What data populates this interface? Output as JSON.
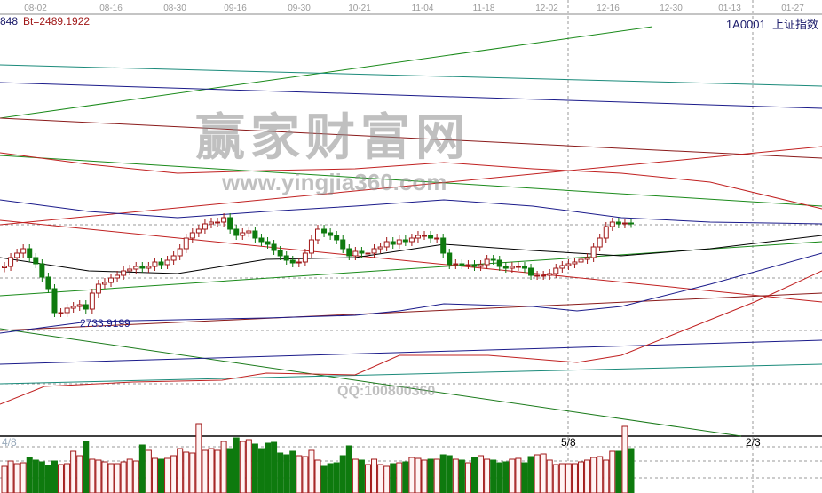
{
  "header": {
    "left_value": "848",
    "bt_value": "Bt=2489.1922",
    "symbol": "1A0001",
    "name": "上证指数"
  },
  "chart_data": {
    "type": "candlestick",
    "x_tick_labels": [
      "08-02",
      "08-16",
      "08-30",
      "09-16",
      "09-30",
      "10-21",
      "11-04",
      "11-18",
      "12-02",
      "12-16",
      "12-30",
      "01-13",
      "01-27"
    ],
    "low_marker": "2733.9199",
    "period_markers": [
      "4/8",
      "5/8",
      "2/3"
    ],
    "ylim": [
      2230,
      4074
    ],
    "close": [
      2994,
      3034,
      3054,
      3074,
      3034,
      3006,
      2946,
      2894,
      2786,
      2786,
      2806,
      2814,
      2822,
      2802,
      2874,
      2914,
      2922,
      2942,
      2954,
      2974,
      2982,
      2994,
      2986,
      2994,
      3014,
      3002,
      3022,
      3042,
      3074,
      3122,
      3146,
      3162,
      3186,
      3194,
      3194,
      3214,
      3162,
      3134,
      3146,
      3154,
      3122,
      3106,
      3094,
      3066,
      3042,
      3022,
      3010,
      3014,
      3054,
      3114,
      3162,
      3146,
      3134,
      3114,
      3074,
      3042,
      3062,
      3054,
      3054,
      3074,
      3082,
      3106,
      3094,
      3114,
      3106,
      3122,
      3134,
      3134,
      3122,
      3122,
      3054,
      3002,
      3006,
      3002,
      3002,
      2994,
      3002,
      3026,
      3022,
      2994,
      2986,
      2994,
      2994,
      2986,
      2954,
      2954,
      2954,
      2962,
      2986,
      2998,
      3006,
      3014,
      3026,
      3034,
      3082,
      3122,
      3174,
      3194,
      3186,
      3190,
      3188
    ],
    "volume": [
      30,
      36,
      33,
      34,
      40,
      37,
      35,
      31,
      36,
      32,
      33,
      47,
      42,
      58,
      38,
      37,
      35,
      33,
      33,
      35,
      38,
      36,
      54,
      48,
      39,
      38,
      39,
      42,
      50,
      46,
      45,
      78,
      48,
      50,
      48,
      58,
      50,
      62,
      58,
      60,
      55,
      50,
      56,
      57,
      45,
      43,
      47,
      42,
      41,
      48,
      37,
      30,
      33,
      34,
      42,
      53,
      38,
      37,
      32,
      38,
      32,
      30,
      33,
      34,
      35,
      40,
      39,
      37,
      38,
      38,
      43,
      42,
      38,
      37,
      34,
      40,
      42,
      38,
      37,
      34,
      35,
      38,
      39,
      34,
      41,
      43,
      44,
      37,
      32,
      33,
      33,
      33,
      35,
      37,
      40,
      41,
      37,
      47,
      47,
      75,
      50
    ],
    "volume_ylim": [
      0,
      80
    ],
    "grid": true
  },
  "watermark": {
    "site_name": "赢家财富网",
    "url": "www.yingjia360.com",
    "qq": "QQ:100800360"
  },
  "colors": {
    "up": "#a01818",
    "down": "#0e7a0e",
    "up_fill": "#fff4f4"
  }
}
